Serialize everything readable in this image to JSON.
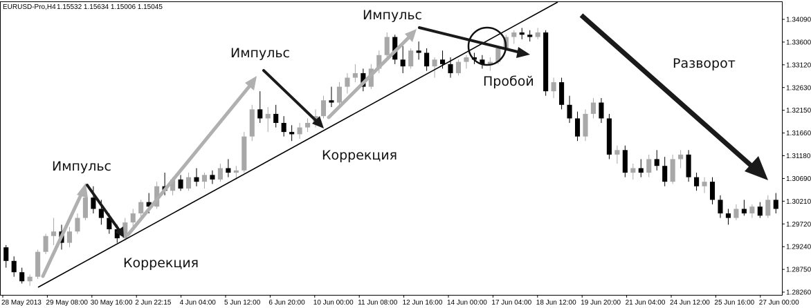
{
  "window": {
    "symbol_label": "EURUSD-Pro,H4",
    "ohlc_label": "1.15532 1.15634 1.15006 1.15045"
  },
  "chart_data": {
    "type": "candlestick",
    "ylim": [
      1.2826,
      1.3429
    ],
    "y_ticks": [
      "1.34090",
      "1.33600",
      "1.33120",
      "1.32630",
      "1.32150",
      "1.31660",
      "1.31180",
      "1.30690",
      "1.30210",
      "1.29720",
      "1.29240",
      "1.28750",
      "1.28260"
    ],
    "x_ticks": [
      "28 May 2013",
      "29 May 08:00",
      "30 May 16:00",
      "2 Jun 22:15",
      "4 Jun 04:00",
      "5 Jun 12:00",
      "6 Jun 20:00",
      "10 Jun 00:00",
      "11 Jun 08:00",
      "12 Jun 16:00",
      "14 Jun 00:00",
      "17 Jun 04:00",
      "18 Jun 12:00",
      "19 Jun 20:00",
      "21 Jun 04:00",
      "24 Jun 12:00",
      "25 Jun 16:00",
      "27 Jun 00:00"
    ],
    "candles": [
      [
        1.2925,
        1.293,
        1.288,
        1.2895
      ],
      [
        1.2895,
        1.2905,
        1.286,
        1.287
      ],
      [
        1.287,
        1.288,
        1.2845,
        1.285
      ],
      [
        1.285,
        1.2865,
        1.284,
        1.286
      ],
      [
        1.286,
        1.292,
        1.2855,
        1.2915
      ],
      [
        1.2915,
        1.2955,
        1.291,
        1.295
      ],
      [
        1.295,
        1.299,
        1.293,
        1.296
      ],
      [
        1.296,
        1.2975,
        1.292,
        1.2935
      ],
      [
        1.2935,
        1.297,
        1.2925,
        1.296
      ],
      [
        1.296,
        1.3,
        1.2955,
        1.299
      ],
      [
        1.299,
        1.304,
        1.2985,
        1.3035
      ],
      [
        1.3035,
        1.306,
        1.3,
        1.301
      ],
      [
        1.301,
        1.303,
        1.2975,
        1.299
      ],
      [
        1.299,
        1.3,
        1.2955,
        1.2965
      ],
      [
        1.2965,
        1.2975,
        1.2935,
        1.2945
      ],
      [
        1.2945,
        1.299,
        1.294,
        1.298
      ],
      [
        1.298,
        1.301,
        1.2965,
        1.3
      ],
      [
        1.3,
        1.303,
        1.299,
        1.3025
      ],
      [
        1.3025,
        1.3045,
        1.3,
        1.3015
      ],
      [
        1.3015,
        1.307,
        1.301,
        1.306
      ],
      [
        1.306,
        1.309,
        1.304,
        1.305
      ],
      [
        1.305,
        1.308,
        1.304,
        1.3075
      ],
      [
        1.3075,
        1.3085,
        1.305,
        1.3055
      ],
      [
        1.3055,
        1.309,
        1.305,
        1.308
      ],
      [
        1.308,
        1.31,
        1.306,
        1.307
      ],
      [
        1.307,
        1.309,
        1.3055,
        1.3085
      ],
      [
        1.3085,
        1.3095,
        1.3065,
        1.3075
      ],
      [
        1.3075,
        1.311,
        1.307,
        1.31
      ],
      [
        1.31,
        1.312,
        1.308,
        1.309
      ],
      [
        1.309,
        1.3105,
        1.3075,
        1.3095
      ],
      [
        1.3095,
        1.318,
        1.309,
        1.317
      ],
      [
        1.317,
        1.324,
        1.316,
        1.323
      ],
      [
        1.323,
        1.327,
        1.32,
        1.321
      ],
      [
        1.321,
        1.3235,
        1.318,
        1.322
      ],
      [
        1.322,
        1.324,
        1.319,
        1.32
      ],
      [
        1.32,
        1.3215,
        1.317,
        1.318
      ],
      [
        1.318,
        1.3195,
        1.316,
        1.3175
      ],
      [
        1.3175,
        1.32,
        1.3165,
        1.319
      ],
      [
        1.319,
        1.321,
        1.318,
        1.32
      ],
      [
        1.32,
        1.323,
        1.319,
        1.3215
      ],
      [
        1.3215,
        1.326,
        1.321,
        1.325
      ],
      [
        1.325,
        1.328,
        1.3235,
        1.3245
      ],
      [
        1.3245,
        1.329,
        1.324,
        1.328
      ],
      [
        1.328,
        1.331,
        1.3265,
        1.33
      ],
      [
        1.33,
        1.333,
        1.329,
        1.331
      ],
      [
        1.331,
        1.332,
        1.327,
        1.328
      ],
      [
        1.328,
        1.333,
        1.3275,
        1.332
      ],
      [
        1.332,
        1.336,
        1.331,
        1.335
      ],
      [
        1.335,
        1.34,
        1.334,
        1.339
      ],
      [
        1.339,
        1.3395,
        1.333,
        1.334
      ],
      [
        1.334,
        1.337,
        1.331,
        1.3325
      ],
      [
        1.3325,
        1.3365,
        1.332,
        1.336
      ],
      [
        1.336,
        1.338,
        1.334,
        1.3355
      ],
      [
        1.3355,
        1.3365,
        1.3315,
        1.3325
      ],
      [
        1.3325,
        1.3345,
        1.33,
        1.334
      ],
      [
        1.334,
        1.336,
        1.332,
        1.333
      ],
      [
        1.333,
        1.3345,
        1.33,
        1.331
      ],
      [
        1.331,
        1.334,
        1.3305,
        1.3335
      ],
      [
        1.3335,
        1.335,
        1.332,
        1.3345
      ],
      [
        1.3345,
        1.3355,
        1.333,
        1.334
      ],
      [
        1.334,
        1.335,
        1.332,
        1.333
      ],
      [
        1.333,
        1.3345,
        1.3315,
        1.3335
      ],
      [
        1.3335,
        1.337,
        1.333,
        1.3365
      ],
      [
        1.3365,
        1.3395,
        1.336,
        1.339
      ],
      [
        1.339,
        1.3405,
        1.3375,
        1.34
      ],
      [
        1.34,
        1.341,
        1.3385,
        1.3395
      ],
      [
        1.3395,
        1.3405,
        1.338,
        1.339
      ],
      [
        1.339,
        1.341,
        1.3385,
        1.34
      ],
      [
        1.34,
        1.3405,
        1.326,
        1.327
      ],
      [
        1.327,
        1.33,
        1.3255,
        1.329
      ],
      [
        1.329,
        1.33,
        1.323,
        1.324
      ],
      [
        1.324,
        1.326,
        1.32,
        1.321
      ],
      [
        1.321,
        1.3225,
        1.316,
        1.317
      ],
      [
        1.317,
        1.323,
        1.316,
        1.322
      ],
      [
        1.322,
        1.3255,
        1.321,
        1.3245
      ],
      [
        1.3245,
        1.3255,
        1.32,
        1.321
      ],
      [
        1.321,
        1.322,
        1.312,
        1.313
      ],
      [
        1.313,
        1.315,
        1.311,
        1.314
      ],
      [
        1.314,
        1.315,
        1.308,
        1.309
      ],
      [
        1.309,
        1.311,
        1.3075,
        1.31
      ],
      [
        1.31,
        1.312,
        1.308,
        1.309
      ],
      [
        1.309,
        1.313,
        1.308,
        1.312
      ],
      [
        1.312,
        1.314,
        1.3095,
        1.3105
      ],
      [
        1.3105,
        1.3125,
        1.306,
        1.307
      ],
      [
        1.307,
        1.313,
        1.3065,
        1.312
      ],
      [
        1.312,
        1.314,
        1.31,
        1.313
      ],
      [
        1.313,
        1.314,
        1.307,
        1.308
      ],
      [
        1.308,
        1.309,
        1.305,
        1.306
      ],
      [
        1.306,
        1.308,
        1.3045,
        1.307
      ],
      [
        1.307,
        1.308,
        1.302,
        1.303
      ],
      [
        1.303,
        1.304,
        1.299,
        1.3
      ],
      [
        1.3,
        1.301,
        1.2975,
        1.299
      ],
      [
        1.299,
        1.302,
        1.2985,
        1.301
      ],
      [
        1.301,
        1.303,
        1.2995,
        1.3
      ],
      [
        1.3,
        1.302,
        1.299,
        1.3015
      ],
      [
        1.3015,
        1.3025,
        1.299,
        1.2995
      ],
      [
        1.2995,
        1.304,
        1.299,
        1.303
      ],
      [
        1.303,
        1.3045,
        1.3,
        1.301
      ]
    ],
    "annotations": {
      "impulse_label": "Импульс",
      "correction_label": "Коррекция",
      "breakout_label": "Пробой",
      "reversal_label": "Разворот"
    }
  }
}
